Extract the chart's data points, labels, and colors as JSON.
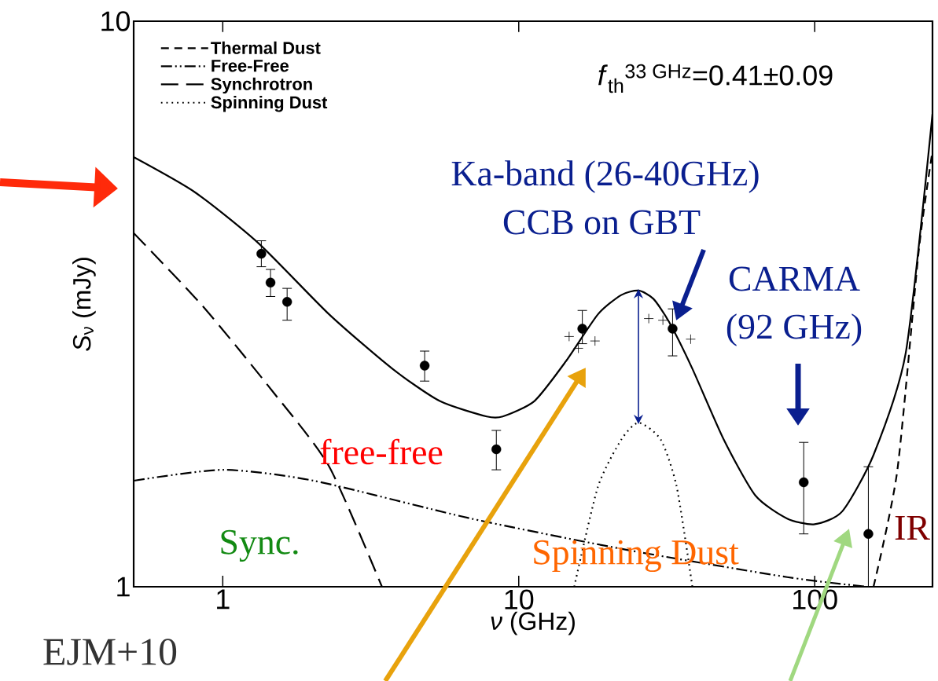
{
  "chart_data": {
    "type": "line",
    "xlabel": "*ν* (GHz)",
    "ylabel": "*S*$_{ν}$ (mJy)",
    "log": "xy",
    "xlim": [
      0.5,
      250
    ],
    "ylim": [
      1,
      10
    ],
    "xticks": [
      1,
      10,
      100
    ],
    "yticks": [
      1,
      10
    ],
    "legend": "top left",
    "series": [
      {
        "name": "Thermal Dust",
        "color": "#000000",
        "line_style": "dashed",
        "marker": "none",
        "x": [
          158,
          190,
          225,
          250
        ],
        "values": [
          1.0,
          1.6,
          3.96,
          5.9
        ]
      },
      {
        "name": "Free-Free",
        "color": "#000000",
        "line_style": "dashdotdotted",
        "marker": "none",
        "x": [
          0.5,
          1,
          2.03,
          6.9,
          23.6,
          80.7,
          150
        ],
        "values": [
          1.54,
          1.61,
          1.54,
          1.32,
          1.16,
          1.04,
          1.0
        ]
      },
      {
        "name": "Synchrotron",
        "color": "#000000",
        "line_style": "long dashed",
        "marker": "none",
        "x": [
          0.5,
          0.858,
          1.49,
          2.29,
          3.45
        ],
        "values": [
          4.22,
          3.13,
          2.2,
          1.63,
          1.0
        ]
      },
      {
        "name": "Spinning Dust",
        "color": "#000000",
        "line_style": "dotted",
        "marker": "none",
        "x": [
          15.4,
          18.5,
          22.2,
          25.4,
          30.2,
          34.2,
          38.6
        ],
        "values": [
          1.0,
          1.5,
          1.82,
          1.95,
          1.82,
          1.5,
          1.0
        ]
      },
      {
        "color": "#000000",
        "line_style": "solid",
        "marker": "none",
        "x": [
          0.5,
          0.807,
          1.32,
          2.29,
          3.74,
          5.41,
          7.8,
          8.83,
          11.3,
          14.4,
          18.5,
          22.2,
          25.4,
          28.5,
          32.2,
          38.6,
          49.3,
          63,
          80.7,
          100,
          124,
          158,
          203,
          250
        ],
        "values": [
          5.75,
          4.98,
          4.05,
          3.03,
          2.43,
          2.13,
          2.0,
          2.0,
          2.13,
          2.5,
          3.03,
          3.28,
          3.34,
          3.23,
          2.94,
          2.43,
          1.82,
          1.45,
          1.32,
          1.29,
          1.36,
          1.71,
          2.59,
          6.86
        ]
      },
      {
        "type": "scatter",
        "color": "#000000",
        "marker": "circle",
        "x": [
          1.35,
          1.45,
          1.65,
          4.81,
          8.4,
          16.4,
          33.1,
          91.8,
          151.8
        ],
        "values": [
          3.88,
          3.45,
          3.19,
          2.46,
          1.75,
          2.86,
          2.86,
          1.53,
          1.24
        ],
        "errors": [
          [
            3.68,
            4.09
          ],
          [
            3.26,
            3.64
          ],
          [
            2.96,
            3.37
          ],
          [
            2.31,
            2.61
          ],
          [
            1.61,
            1.89
          ],
          [
            2.69,
            3.08
          ],
          [
            2.56,
            3.1
          ],
          [
            1.24,
            1.8
          ],
          [
            1.0,
            1.63
          ]
        ]
      },
      {
        "type": "scatter",
        "color": "#000000",
        "marker": "cross",
        "x": [
          14.8,
          15.9,
          18.1,
          27.5,
          30.7,
          38.1
        ],
        "values": [
          2.77,
          2.64,
          2.72,
          2.98,
          2.96,
          2.74
        ]
      }
    ],
    "annotations": [
      "*f*$_{th}$$^{33 GHz}$=0.41±0.09",
      "Ka-band (26-40GHz)",
      "CCB on GBT",
      "CARMA",
      "(92 GHz)",
      "free-free",
      "Sync.",
      "Spinning Dust",
      "IR",
      "EJM+10"
    ]
  }
}
